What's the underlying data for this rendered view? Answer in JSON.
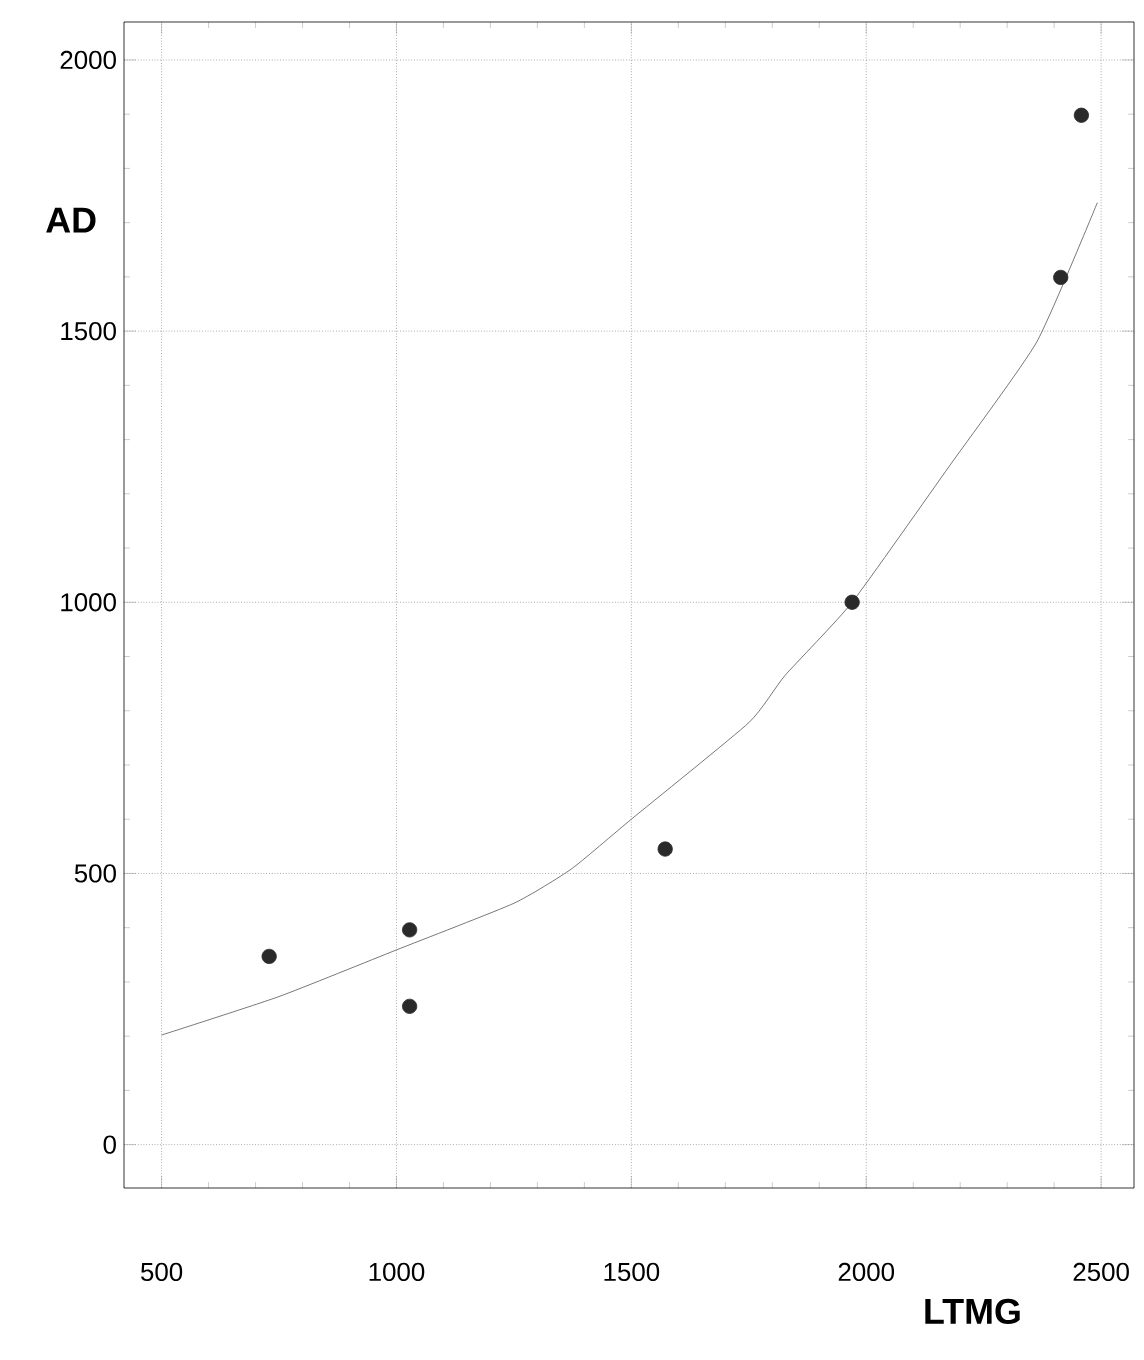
{
  "chart_data": {
    "type": "scatter",
    "xlabel": "LTMG",
    "ylabel": "AD",
    "xlim": [
      420,
      2570
    ],
    "ylim": [
      -80,
      2070
    ],
    "xticks": [
      500,
      1000,
      1500,
      2000,
      2500
    ],
    "yticks": [
      0,
      500,
      1000,
      1500,
      2000
    ],
    "grid": true,
    "series": [
      {
        "color": "#2a2a2a",
        "marker": "circle",
        "x": [
          729,
          1028,
          1028,
          1572,
          1970,
          2414,
          2458
        ],
        "values": [
          347,
          396,
          255,
          545,
          1000,
          1599,
          1898
        ]
      },
      {
        "type": "line",
        "color": "#555555",
        "marker": "none",
        "line_style": "solid",
        "x": [
          500,
          750,
          1000,
          1250,
          1372,
          1500,
          1750,
          1827,
          1970,
          2176,
          2363,
          2492
        ],
        "values": [
          202,
          273,
          359,
          445,
          508,
          600,
          778,
          865,
          1000,
          1250,
          1480,
          1737
        ]
      }
    ]
  }
}
